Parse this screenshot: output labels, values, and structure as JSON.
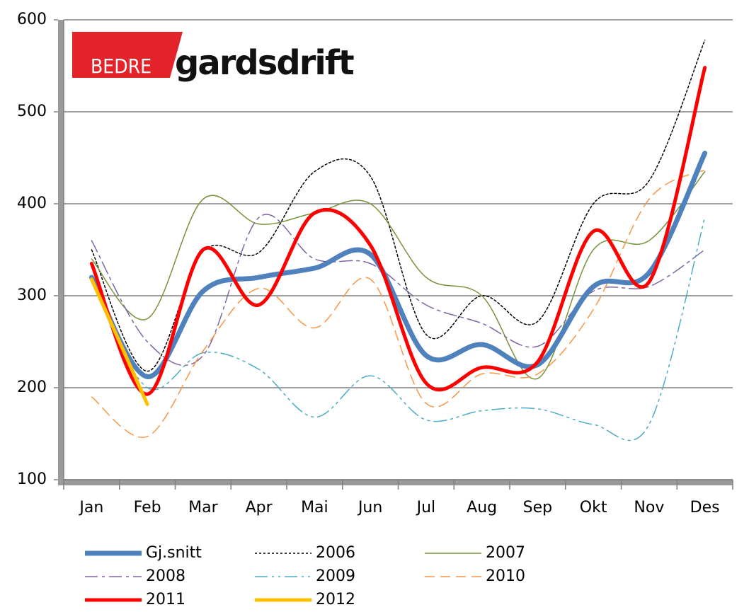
{
  "chart_data": {
    "type": "line",
    "annotations": [
      "BEDRE",
      "gardsdrift"
    ],
    "categories": [
      "Jan",
      "Feb",
      "Mar",
      "Apr",
      "Mai",
      "Jun",
      "Jul",
      "Aug",
      "Sep",
      "Okt",
      "Nov",
      "Des"
    ],
    "series": [
      {
        "name": "Gj.snitt",
        "color": "#4f81bd",
        "dash": "solid",
        "line_width": 7,
        "values": [
          320,
          212,
          305,
          320,
          330,
          345,
          235,
          247,
          225,
          310,
          325,
          455
        ]
      },
      {
        "name": "2006",
        "color": "#000000",
        "dash": "dotted",
        "line_width": 1.5,
        "values": [
          350,
          218,
          348,
          347,
          435,
          430,
          258,
          300,
          272,
          400,
          425,
          578
        ]
      },
      {
        "name": "2007",
        "color": "#77933c",
        "dash": "solid",
        "line_width": 1.5,
        "values": [
          340,
          275,
          405,
          378,
          390,
          400,
          320,
          300,
          210,
          350,
          360,
          435
        ]
      },
      {
        "name": "2008",
        "color": "#8064a2",
        "dash": "dashdot",
        "line_width": 1.5,
        "values": [
          360,
          250,
          235,
          385,
          340,
          335,
          290,
          270,
          245,
          305,
          310,
          350
        ]
      },
      {
        "name": "2009",
        "color": "#4bacc6",
        "dash": "dashdotdot",
        "line_width": 1.5,
        "values": [
          315,
          200,
          238,
          220,
          168,
          213,
          165,
          175,
          177,
          160,
          160,
          385
        ]
      },
      {
        "name": "2010",
        "color": "#f79646",
        "dash": "dashed",
        "line_width": 1.5,
        "values": [
          190,
          147,
          240,
          308,
          265,
          318,
          183,
          215,
          215,
          285,
          405,
          437
        ]
      },
      {
        "name": "2011",
        "color": "#ff0000",
        "dash": "solid",
        "line_width": 5,
        "values": [
          335,
          193,
          350,
          290,
          390,
          355,
          205,
          222,
          228,
          370,
          315,
          548
        ]
      },
      {
        "name": "2012",
        "color": "#ffc000",
        "dash": "solid",
        "line_width": 5,
        "values": [
          318,
          182,
          null,
          null,
          null,
          null,
          null,
          null,
          null,
          null,
          null,
          null
        ]
      }
    ],
    "ylim": [
      100,
      600
    ],
    "yticks": [
      100,
      200,
      300,
      400,
      500,
      600
    ],
    "grid": true
  }
}
